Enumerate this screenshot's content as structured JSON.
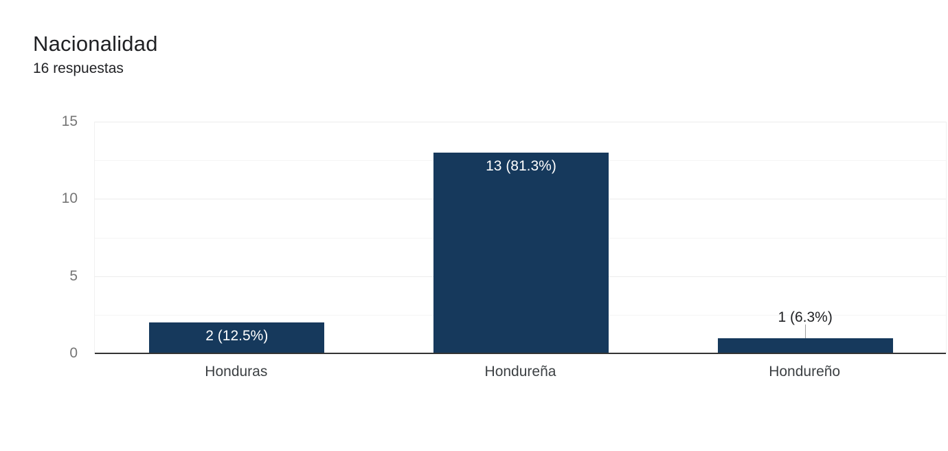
{
  "header": {
    "title": "Nacionalidad",
    "subtitle": "16 respuestas"
  },
  "chart_data": {
    "type": "bar",
    "title": "Nacionalidad",
    "subtitle": "16 respuestas",
    "categories": [
      "Honduras",
      "Hondureña",
      "Hondureño"
    ],
    "values": [
      2,
      13,
      1
    ],
    "data_labels": [
      "2 (12.5%)",
      "13 (81.3%)",
      "1 (6.3%)"
    ],
    "percentages": [
      12.5,
      81.3,
      6.3
    ],
    "total_responses": 16,
    "label_placement": [
      "inside",
      "inside",
      "outside"
    ],
    "xlabel": "",
    "ylabel": "",
    "ylim": [
      0,
      15
    ],
    "yticks": [
      0,
      5,
      10,
      15
    ],
    "minor_gridlines": [
      2.5,
      7.5,
      12.5
    ],
    "major_gridlines": [
      5,
      10,
      15
    ],
    "grid": true,
    "legend_position": "none",
    "colors": {
      "bar": "#16395c",
      "inside_label": "#ffffff",
      "outside_label": "#202124",
      "axis_tick": "#757575",
      "category_label": "#3c4043",
      "major_gridline": "#ececec",
      "minor_gridline": "#f5f5f5",
      "baseline": "#333333",
      "background": "#ffffff"
    }
  }
}
